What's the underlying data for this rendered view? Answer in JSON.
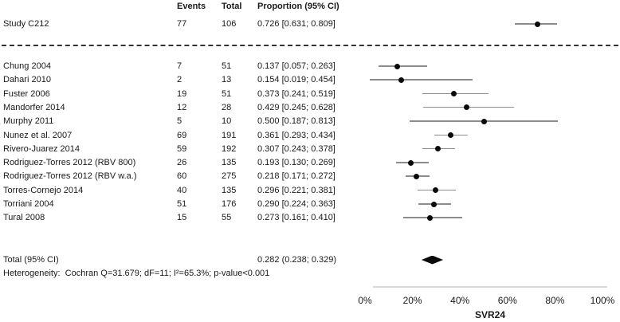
{
  "colors": {
    "background": "#ffffff",
    "text": "#1a1a1a",
    "ci_line": "#8c8c8c",
    "marker": "#0a0a0a",
    "diamond": "#0a0a0a",
    "separator": "#333333",
    "axis_line": "#d9d9d9"
  },
  "chart_data": {
    "type": "forest",
    "columns": {
      "events_header": "Events",
      "total_header": "Total",
      "proportion_header": "Proportion (95% CI)"
    },
    "highlight": {
      "study": "Study C212",
      "events": "77",
      "total": "106",
      "ci_text": "0.726 [0.631; 0.809]",
      "p": 0.726,
      "lo": 0.631,
      "hi": 0.809
    },
    "studies": [
      {
        "study": "Chung 2004",
        "events": "7",
        "total": "51",
        "ci_text": "0.137 [0.057; 0.263]",
        "p": 0.137,
        "lo": 0.057,
        "hi": 0.263
      },
      {
        "study": "Dahari 2010",
        "events": "2",
        "total": "13",
        "ci_text": "0.154 [0.019; 0.454]",
        "p": 0.154,
        "lo": 0.019,
        "hi": 0.454
      },
      {
        "study": "Fuster 2006",
        "events": "19",
        "total": "51",
        "ci_text": "0.373 [0.241; 0.519]",
        "p": 0.373,
        "lo": 0.241,
        "hi": 0.519
      },
      {
        "study": "Mandorfer 2014",
        "events": "12",
        "total": "28",
        "ci_text": "0.429 [0.245; 0.628]",
        "p": 0.429,
        "lo": 0.245,
        "hi": 0.628
      },
      {
        "study": "Murphy 2011",
        "events": "5",
        "total": "10",
        "ci_text": "0.500 [0.187; 0.813]",
        "p": 0.5,
        "lo": 0.187,
        "hi": 0.813
      },
      {
        "study": "Nunez et al. 2007",
        "events": "69",
        "total": "191",
        "ci_text": "0.361 [0.293; 0.434]",
        "p": 0.361,
        "lo": 0.293,
        "hi": 0.434
      },
      {
        "study": "Rivero-Juarez 2014",
        "events": "59",
        "total": "192",
        "ci_text": "0.307 [0.243; 0.378]",
        "p": 0.307,
        "lo": 0.243,
        "hi": 0.378
      },
      {
        "study": "Rodriguez-Torres 2012 (RBV 800)",
        "events": "26",
        "total": "135",
        "ci_text": "0.193 [0.130; 0.269]",
        "p": 0.193,
        "lo": 0.13,
        "hi": 0.269
      },
      {
        "study": "Rodriguez-Torres 2012 (RBV w.a.)",
        "events": "60",
        "total": "275",
        "ci_text": "0.218 [0.171; 0.272]",
        "p": 0.218,
        "lo": 0.171,
        "hi": 0.272
      },
      {
        "study": "Torres-Cornejo 2014",
        "events": "40",
        "total": "135",
        "ci_text": "0.296 [0.221; 0.381]",
        "p": 0.296,
        "lo": 0.221,
        "hi": 0.381
      },
      {
        "study": "Torriani 2004",
        "events": "51",
        "total": "176",
        "ci_text": "0.290 [0.224; 0.363]",
        "p": 0.29,
        "lo": 0.224,
        "hi": 0.363
      },
      {
        "study": "Tural 2008",
        "events": "15",
        "total": "55",
        "ci_text": "0.273 [0.161; 0.410]",
        "p": 0.273,
        "lo": 0.161,
        "hi": 0.41
      }
    ],
    "total": {
      "label": "Total (95% CI)",
      "ci_text": "0.282 (0.238; 0.329)",
      "p": 0.282,
      "lo": 0.238,
      "hi": 0.329
    },
    "heterogeneity": "Heterogeneity:  Cochran Q=31.679; dF=11; I²=65.3%; p-value<0.001",
    "xlabel": "SVR24",
    "x_ticks": [
      "0%",
      "20%",
      "40%",
      "60%",
      "80%",
      "100%"
    ],
    "x_tick_values": [
      0,
      0.2,
      0.4,
      0.6,
      0.8,
      1.0
    ],
    "xlim": [
      0,
      1
    ],
    "grid": false,
    "legend": false
  }
}
